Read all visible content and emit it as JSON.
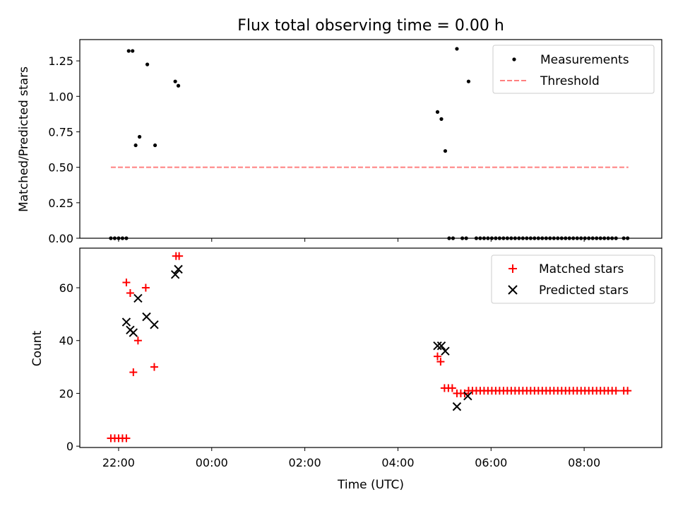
{
  "chart_data": [
    {
      "type": "scatter",
      "title": "Flux total observing time = 0.00 h",
      "xlabel": "",
      "ylabel": "Matched/Predicted stars",
      "x_unit": "time of day (UTC), hours past midnight of first night; values > 24 wrap to next day",
      "xlim": [
        "21:10",
        "09:40"
      ],
      "ylim": [
        0,
        1.4
      ],
      "yticks": [
        "0.00",
        "0.25",
        "0.50",
        "0.75",
        "1.00",
        "1.25"
      ],
      "legend": {
        "position": "top-right",
        "entries": [
          "Measurements",
          "Threshold"
        ]
      },
      "series": [
        {
          "name": "Measurements",
          "marker": "dot",
          "color": "#000000",
          "points": [
            {
              "x": "21:50",
              "y": 0
            },
            {
              "x": "21:55",
              "y": 0
            },
            {
              "x": "22:00",
              "y": 0
            },
            {
              "x": "22:05",
              "y": 0
            },
            {
              "x": "22:10",
              "y": 0
            },
            {
              "x": "22:13",
              "y": 1.32
            },
            {
              "x": "22:18",
              "y": 1.32
            },
            {
              "x": "22:22",
              "y": 0.655
            },
            {
              "x": "22:27",
              "y": 0.715
            },
            {
              "x": "22:37",
              "y": 1.225
            },
            {
              "x": "22:47",
              "y": 0.655
            },
            {
              "x": "23:13",
              "y": 1.105
            },
            {
              "x": "23:17",
              "y": 1.075
            },
            {
              "x": "04:51",
              "y": 0.89
            },
            {
              "x": "04:56",
              "y": 0.84
            },
            {
              "x": "05:01",
              "y": 0.615
            },
            {
              "x": "05:16",
              "y": 1.335
            },
            {
              "x": "05:31",
              "y": 1.105
            },
            {
              "x": "05:06",
              "y": 0
            },
            {
              "x": "05:11",
              "y": 0
            },
            {
              "x": "05:23",
              "y": 0
            },
            {
              "x": "05:28",
              "y": 0
            },
            {
              "x": "05:41",
              "y": 0
            },
            {
              "x": "05:46",
              "y": 0
            },
            {
              "x": "05:51",
              "y": 0
            },
            {
              "x": "05:56",
              "y": 0
            },
            {
              "x": "06:01",
              "y": 0
            },
            {
              "x": "06:06",
              "y": 0
            },
            {
              "x": "06:11",
              "y": 0
            },
            {
              "x": "06:16",
              "y": 0
            },
            {
              "x": "06:21",
              "y": 0
            },
            {
              "x": "06:26",
              "y": 0
            },
            {
              "x": "06:31",
              "y": 0
            },
            {
              "x": "06:36",
              "y": 0
            },
            {
              "x": "06:41",
              "y": 0
            },
            {
              "x": "06:46",
              "y": 0
            },
            {
              "x": "06:51",
              "y": 0
            },
            {
              "x": "06:56",
              "y": 0
            },
            {
              "x": "07:01",
              "y": 0
            },
            {
              "x": "07:06",
              "y": 0
            },
            {
              "x": "07:11",
              "y": 0
            },
            {
              "x": "07:16",
              "y": 0
            },
            {
              "x": "07:21",
              "y": 0
            },
            {
              "x": "07:26",
              "y": 0
            },
            {
              "x": "07:31",
              "y": 0
            },
            {
              "x": "07:36",
              "y": 0
            },
            {
              "x": "07:41",
              "y": 0
            },
            {
              "x": "07:46",
              "y": 0
            },
            {
              "x": "07:51",
              "y": 0
            },
            {
              "x": "07:56",
              "y": 0
            },
            {
              "x": "08:01",
              "y": 0
            },
            {
              "x": "08:06",
              "y": 0
            },
            {
              "x": "08:11",
              "y": 0
            },
            {
              "x": "08:16",
              "y": 0
            },
            {
              "x": "08:21",
              "y": 0
            },
            {
              "x": "08:26",
              "y": 0
            },
            {
              "x": "08:31",
              "y": 0
            },
            {
              "x": "08:36",
              "y": 0
            },
            {
              "x": "08:41",
              "y": 0
            },
            {
              "x": "08:51",
              "y": 0
            },
            {
              "x": "08:56",
              "y": 0
            }
          ]
        },
        {
          "name": "Threshold",
          "style": "dashed-line",
          "color": "#ff7f7f",
          "points": [
            {
              "x": "21:50",
              "y": 0.5
            },
            {
              "x": "08:57",
              "y": 0.5
            }
          ]
        }
      ]
    },
    {
      "type": "scatter",
      "title": "",
      "xlabel": "Time (UTC)",
      "ylabel": "Count",
      "xlim": [
        "21:10",
        "09:40"
      ],
      "ylim": [
        -0.5,
        75
      ],
      "yticks": [
        "0",
        "20",
        "40",
        "60"
      ],
      "xticks": [
        "22:00",
        "00:00",
        "02:00",
        "04:00",
        "06:00",
        "08:00"
      ],
      "legend": {
        "position": "top-right",
        "entries": [
          "Matched stars",
          "Predicted stars"
        ]
      },
      "series": [
        {
          "name": "Matched stars",
          "marker": "plus",
          "color": "#ff0000",
          "points": [
            {
              "x": "21:50",
              "y": 3
            },
            {
              "x": "21:55",
              "y": 3
            },
            {
              "x": "22:00",
              "y": 3
            },
            {
              "x": "22:05",
              "y": 3
            },
            {
              "x": "22:10",
              "y": 3
            },
            {
              "x": "22:10",
              "y": 62
            },
            {
              "x": "22:15",
              "y": 58
            },
            {
              "x": "22:19",
              "y": 28
            },
            {
              "x": "22:25",
              "y": 40
            },
            {
              "x": "22:35",
              "y": 60
            },
            {
              "x": "22:46",
              "y": 30
            },
            {
              "x": "23:14",
              "y": 72
            },
            {
              "x": "23:18",
              "y": 72
            },
            {
              "x": "04:51",
              "y": 34
            },
            {
              "x": "04:55",
              "y": 32
            },
            {
              "x": "05:00",
              "y": 22
            },
            {
              "x": "05:05",
              "y": 22
            },
            {
              "x": "05:10",
              "y": 22
            },
            {
              "x": "05:16",
              "y": 20
            },
            {
              "x": "05:21",
              "y": 20
            },
            {
              "x": "05:26",
              "y": 20
            },
            {
              "x": "05:31",
              "y": 21
            },
            {
              "x": "05:36",
              "y": 21
            },
            {
              "x": "05:41",
              "y": 21
            },
            {
              "x": "05:46",
              "y": 21
            },
            {
              "x": "05:51",
              "y": 21
            },
            {
              "x": "05:56",
              "y": 21
            },
            {
              "x": "06:01",
              "y": 21
            },
            {
              "x": "06:06",
              "y": 21
            },
            {
              "x": "06:11",
              "y": 21
            },
            {
              "x": "06:16",
              "y": 21
            },
            {
              "x": "06:21",
              "y": 21
            },
            {
              "x": "06:26",
              "y": 21
            },
            {
              "x": "06:31",
              "y": 21
            },
            {
              "x": "06:36",
              "y": 21
            },
            {
              "x": "06:41",
              "y": 21
            },
            {
              "x": "06:46",
              "y": 21
            },
            {
              "x": "06:51",
              "y": 21
            },
            {
              "x": "06:56",
              "y": 21
            },
            {
              "x": "07:01",
              "y": 21
            },
            {
              "x": "07:06",
              "y": 21
            },
            {
              "x": "07:11",
              "y": 21
            },
            {
              "x": "07:16",
              "y": 21
            },
            {
              "x": "07:21",
              "y": 21
            },
            {
              "x": "07:26",
              "y": 21
            },
            {
              "x": "07:31",
              "y": 21
            },
            {
              "x": "07:36",
              "y": 21
            },
            {
              "x": "07:41",
              "y": 21
            },
            {
              "x": "07:46",
              "y": 21
            },
            {
              "x": "07:51",
              "y": 21
            },
            {
              "x": "07:56",
              "y": 21
            },
            {
              "x": "08:01",
              "y": 21
            },
            {
              "x": "08:06",
              "y": 21
            },
            {
              "x": "08:11",
              "y": 21
            },
            {
              "x": "08:16",
              "y": 21
            },
            {
              "x": "08:21",
              "y": 21
            },
            {
              "x": "08:26",
              "y": 21
            },
            {
              "x": "08:31",
              "y": 21
            },
            {
              "x": "08:36",
              "y": 21
            },
            {
              "x": "08:41",
              "y": 21
            },
            {
              "x": "08:51",
              "y": 21
            },
            {
              "x": "08:56",
              "y": 21
            }
          ]
        },
        {
          "name": "Predicted stars",
          "marker": "x",
          "color": "#000000",
          "points": [
            {
              "x": "22:10",
              "y": 47
            },
            {
              "x": "22:15",
              "y": 44
            },
            {
              "x": "22:19",
              "y": 43
            },
            {
              "x": "22:25",
              "y": 56
            },
            {
              "x": "22:36",
              "y": 49
            },
            {
              "x": "22:46",
              "y": 46
            },
            {
              "x": "23:13",
              "y": 65
            },
            {
              "x": "23:17",
              "y": 67
            },
            {
              "x": "04:51",
              "y": 38
            },
            {
              "x": "04:56",
              "y": 38
            },
            {
              "x": "05:01",
              "y": 36
            },
            {
              "x": "05:16",
              "y": 15
            },
            {
              "x": "05:30",
              "y": 19
            }
          ]
        }
      ]
    }
  ]
}
